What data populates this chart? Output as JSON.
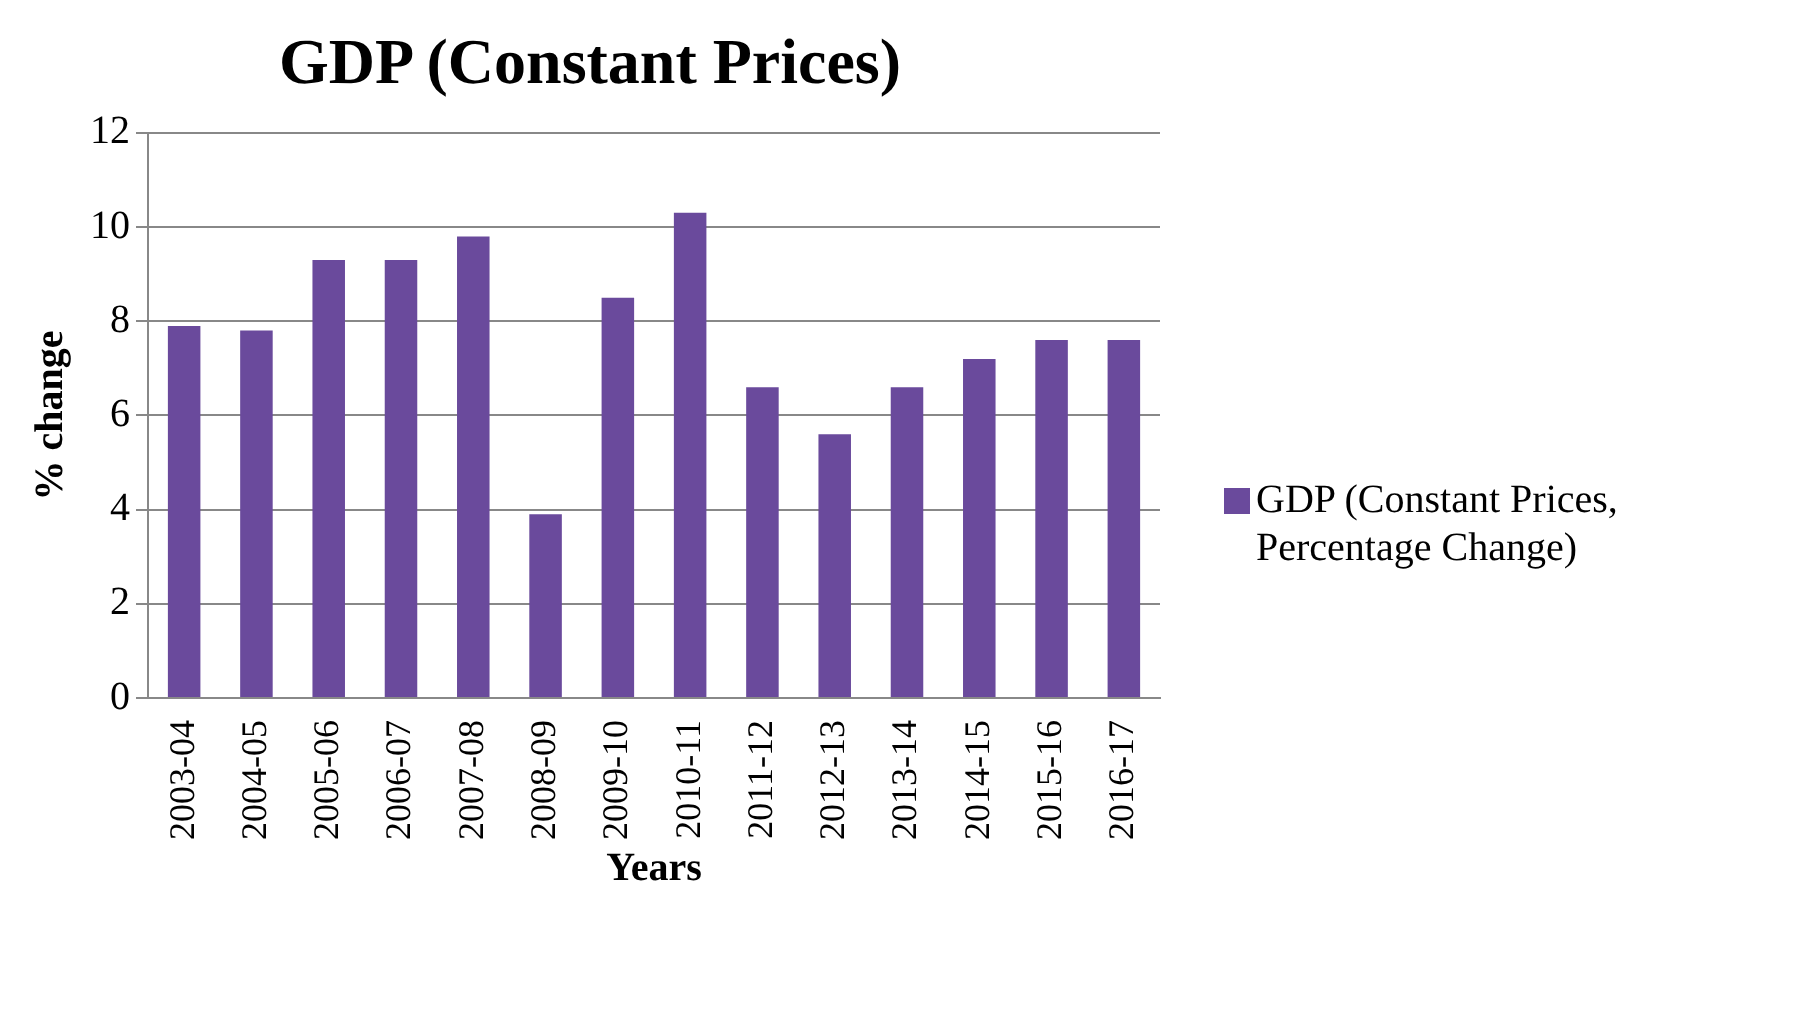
{
  "chart_data": {
    "type": "bar",
    "title": "GDP (Constant Prices)",
    "xlabel": "Years",
    "ylabel": "% change",
    "categories": [
      "2003-04",
      "2004-05",
      "2005-06",
      "2006-07",
      "2007-08",
      "2008-09",
      "2009-10",
      "2010-11",
      "2011-12",
      "2012-13",
      "2013-14",
      "2014-15",
      "2015-16",
      "2016-17"
    ],
    "series": [
      {
        "name": "GDP (Constant Prices, Percentage Change)",
        "color": "#6a4a9c",
        "values": [
          7.9,
          7.8,
          9.3,
          9.3,
          9.8,
          3.9,
          8.5,
          10.3,
          6.6,
          5.6,
          6.6,
          7.2,
          7.6,
          7.6
        ]
      }
    ],
    "ylim": [
      0,
      12
    ],
    "yticks": [
      0,
      2,
      4,
      6,
      8,
      10,
      12
    ],
    "grid": "y",
    "legend": "right"
  }
}
